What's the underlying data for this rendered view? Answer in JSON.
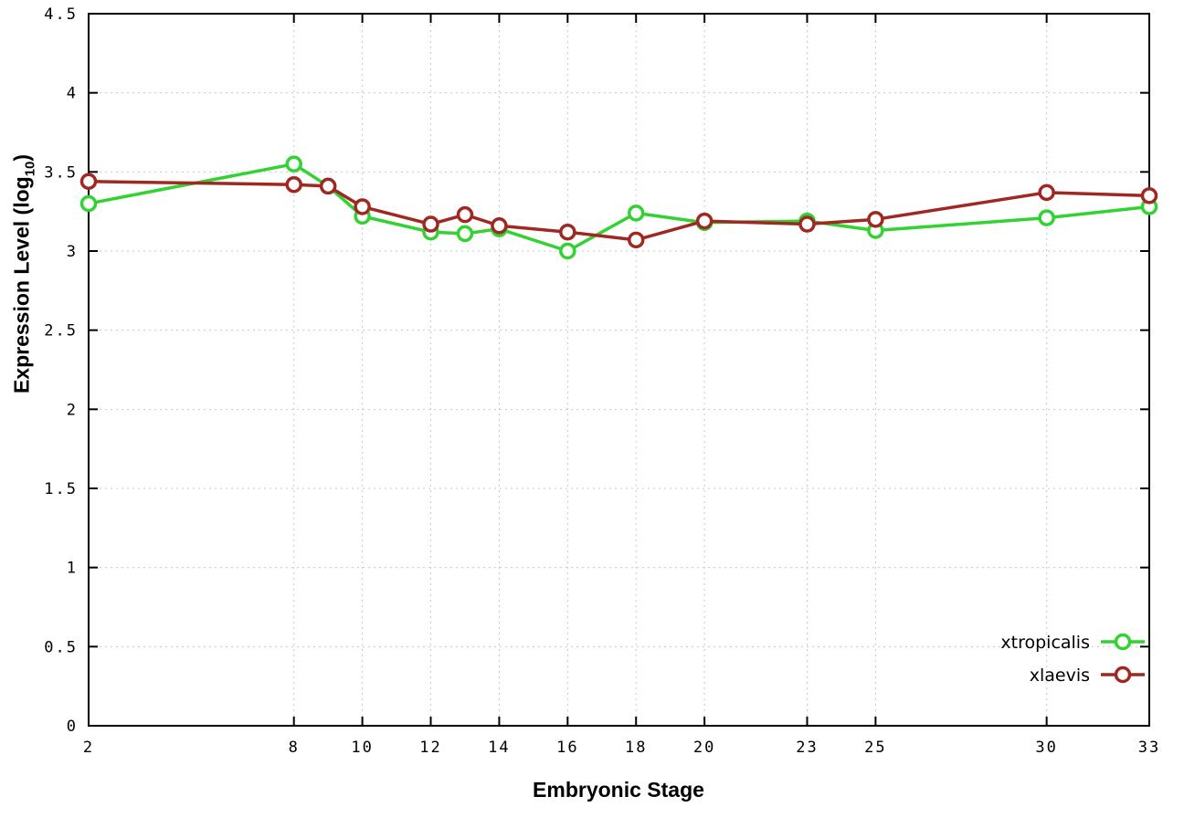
{
  "figure": {
    "background": "#ffffff"
  },
  "chart_data": {
    "type": "line",
    "title": "",
    "xlabel": "Embryonic Stage",
    "ylabel_parts": {
      "main": "Expression Level (log",
      "sub": "10",
      "end": ")"
    },
    "x": [
      2,
      8,
      9,
      10,
      12,
      13,
      14,
      16,
      18,
      20,
      23,
      25,
      30,
      33
    ],
    "series": [
      {
        "name": "xtropicalis",
        "color": "#32d232",
        "values": [
          3.3,
          3.55,
          3.41,
          3.22,
          3.12,
          3.11,
          3.14,
          3.0,
          3.24,
          3.18,
          3.19,
          3.13,
          3.21,
          3.28
        ]
      },
      {
        "name": "xlaevis",
        "color": "#a02822",
        "values": [
          3.44,
          3.42,
          3.41,
          3.28,
          3.17,
          3.23,
          3.16,
          3.12,
          3.07,
          3.19,
          3.17,
          3.2,
          3.37,
          3.35
        ]
      }
    ],
    "xlim": [
      2,
      33
    ],
    "ylim": [
      0,
      4.5
    ],
    "xticks": [
      2,
      8,
      10,
      12,
      14,
      16,
      18,
      20,
      23,
      25,
      30,
      33
    ],
    "yticks": [
      0,
      0.5,
      1,
      1.5,
      2,
      2.5,
      3,
      3.5,
      4,
      4.5
    ],
    "grid": true,
    "grid_style": "dotted",
    "marker": "open-circle",
    "legend_position": "bottom-right"
  }
}
